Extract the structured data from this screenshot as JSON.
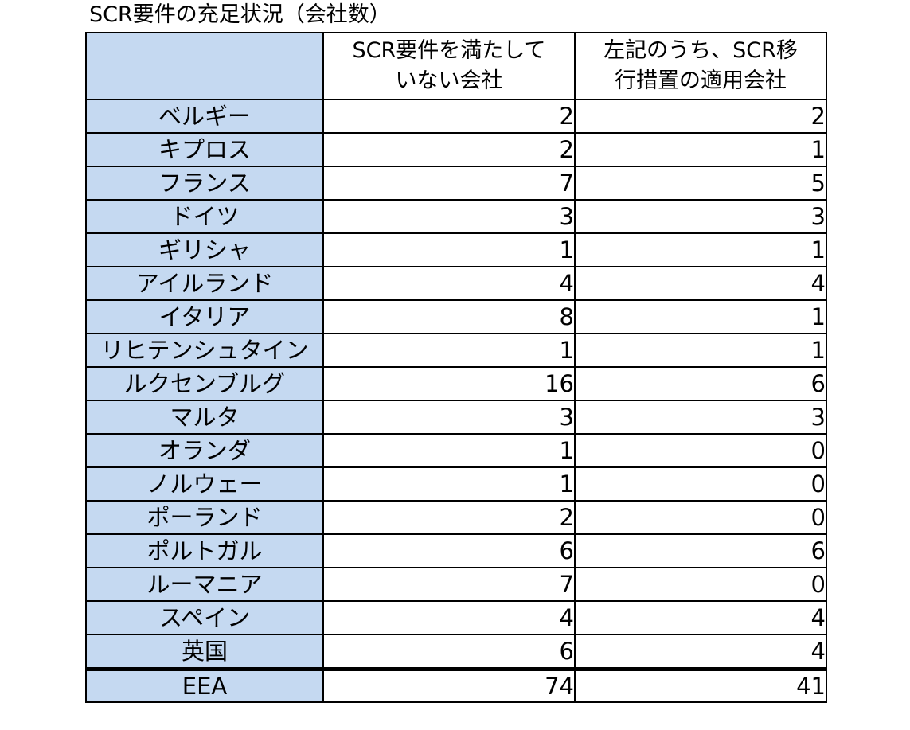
{
  "title": "SCR要件の充足状況（会社数）",
  "chart_data": {
    "type": "table",
    "title": "SCR要件の充足状況（会社数）",
    "columns": [
      {
        "line1": "SCR要件を満たして",
        "line2": "いない会社"
      },
      {
        "line1": "左記のうち、SCR移",
        "line2": "行措置の適用会社"
      }
    ],
    "rows": [
      {
        "country": "ベルギー",
        "not_meeting": 2,
        "transitional": 2
      },
      {
        "country": "キプロス",
        "not_meeting": 2,
        "transitional": 1
      },
      {
        "country": "フランス",
        "not_meeting": 7,
        "transitional": 5
      },
      {
        "country": "ドイツ",
        "not_meeting": 3,
        "transitional": 3
      },
      {
        "country": "ギリシャ",
        "not_meeting": 1,
        "transitional": 1
      },
      {
        "country": "アイルランド",
        "not_meeting": 4,
        "transitional": 4
      },
      {
        "country": "イタリア",
        "not_meeting": 8,
        "transitional": 1
      },
      {
        "country": "リヒテンシュタイン",
        "not_meeting": 1,
        "transitional": 1
      },
      {
        "country": "ルクセンブルグ",
        "not_meeting": 16,
        "transitional": 6
      },
      {
        "country": "マルタ",
        "not_meeting": 3,
        "transitional": 3
      },
      {
        "country": "オランダ",
        "not_meeting": 1,
        "transitional": 0
      },
      {
        "country": "ノルウェー",
        "not_meeting": 1,
        "transitional": 0
      },
      {
        "country": "ポーランド",
        "not_meeting": 2,
        "transitional": 0
      },
      {
        "country": "ポルトガル",
        "not_meeting": 6,
        "transitional": 6
      },
      {
        "country": "ルーマニア",
        "not_meeting": 7,
        "transitional": 0
      },
      {
        "country": "スペイン",
        "not_meeting": 4,
        "transitional": 4
      },
      {
        "country": "英国",
        "not_meeting": 6,
        "transitional": 4
      }
    ],
    "total": {
      "country": "EEA",
      "not_meeting": 74,
      "transitional": 41
    }
  },
  "colors": {
    "label_fill": "#c5d9f1",
    "border": "#000000"
  }
}
